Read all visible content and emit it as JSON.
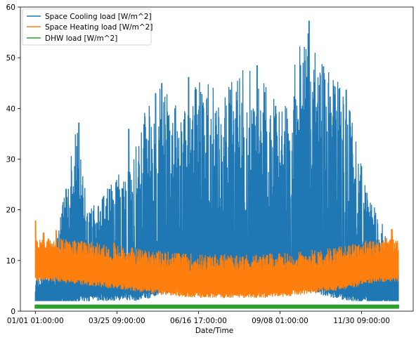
{
  "chart_data": {
    "type": "line",
    "xlabel": "Date/Time",
    "ylabel": "",
    "x_tick_labels": [
      "01/01  01:00:00",
      "03/25  09:00:00",
      "06/16  17:00:00",
      "09/08  01:00:00",
      "11/30  09:00:00"
    ],
    "y_ticks": [
      0,
      10,
      20,
      30,
      40,
      50,
      60
    ],
    "ylim": [
      0,
      60
    ],
    "xlim_hours": [
      -361,
      9117
    ],
    "grid": false,
    "legend_position": "upper-left",
    "series": [
      {
        "name": "Space Cooling load [W/m^2]",
        "color": "#1f77b4",
        "base_profile": {
          "hours": [
            0,
            500,
            1000,
            1500,
            2000,
            2500,
            3000,
            3500,
            4000,
            4500,
            5000,
            5500,
            6000,
            6500,
            7000,
            7500,
            8000,
            8500,
            8760
          ],
          "values": [
            3,
            4,
            4.5,
            5,
            5,
            5,
            6,
            7,
            8,
            9,
            9,
            9,
            8,
            7,
            6,
            5,
            4.5,
            4,
            3
          ]
        },
        "spike_envelope": {
          "hours": [
            0,
            500,
            1000,
            1300,
            1500,
            2000,
            2500,
            3000,
            3500,
            4000,
            4500,
            5000,
            5500,
            6000,
            6500,
            7000,
            7500,
            8000,
            8500,
            8760
          ],
          "values": [
            6,
            14,
            37,
            20,
            22,
            27,
            37,
            45,
            40,
            46,
            43,
            48,
            47,
            40,
            57,
            48,
            44,
            24,
            15,
            10
          ]
        },
        "peaks": [
          [
            1050,
            37.2
          ],
          [
            2250,
            36
          ],
          [
            2900,
            43
          ],
          [
            3050,
            45
          ],
          [
            3700,
            46.2
          ],
          [
            4700,
            43.7
          ],
          [
            5350,
            48.5
          ],
          [
            5800,
            40.5
          ],
          [
            6600,
            57.3
          ],
          [
            6950,
            48.3
          ],
          [
            7500,
            43.7
          ]
        ]
      },
      {
        "name": "Space Heating load [W/m^2]",
        "color": "#ff7f0e",
        "base_profile": {
          "hours": [
            0,
            500,
            1000,
            1500,
            2000,
            2500,
            3000,
            3500,
            4000,
            4500,
            5000,
            5500,
            6000,
            6500,
            7000,
            7500,
            8000,
            8500,
            8760
          ],
          "values": [
            9,
            9,
            8.5,
            8,
            7.5,
            7,
            6.5,
            6,
            5.8,
            5.8,
            5.8,
            5.8,
            6,
            6.5,
            7,
            7.5,
            8.5,
            9,
            9
          ]
        },
        "peaks": [
          [
            0,
            17.9
          ],
          [
            200,
            15.5
          ],
          [
            500,
            16
          ],
          [
            1900,
            13.5
          ],
          [
            4200,
            10.5
          ],
          [
            8600,
            16.2
          ]
        ]
      },
      {
        "name": "DHW load [W/m^2]",
        "color": "#2ca02c",
        "min": 0.5,
        "max": 1.3
      }
    ]
  }
}
